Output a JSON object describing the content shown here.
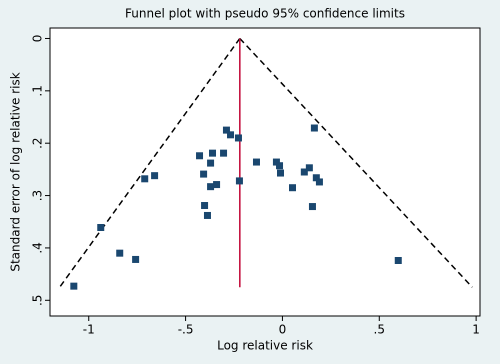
{
  "chart_data": {
    "type": "scatter",
    "title": "Funnel plot with pseudo 95% confidence limits",
    "xlabel": "Log relative risk",
    "ylabel": "Standard error of log relative risk",
    "xlim": [
      -1.2,
      1.02
    ],
    "ylim": [
      -0.02,
      0.53
    ],
    "y_reversed": true,
    "xticks": [
      {
        "value": -1,
        "label": "-1"
      },
      {
        "value": -0.5,
        "label": "-.5"
      },
      0,
      {
        "value": 0.5,
        "label": ".5"
      },
      1
    ],
    "yticks": [
      0,
      {
        "value": 0.1,
        "label": ".1"
      },
      {
        "value": 0.2,
        "label": ".2"
      },
      {
        "value": 0.3,
        "label": ".3"
      },
      {
        "value": 0.4,
        "label": ".4"
      },
      {
        "value": 0.5,
        "label": ".5"
      }
    ],
    "series": [
      {
        "color": "#1a476f",
        "x": [
          -1.077,
          -0.938,
          -0.84,
          -0.758,
          -0.711,
          -0.66,
          -0.428,
          -0.407,
          -0.402,
          -0.387,
          -0.371,
          -0.371,
          -0.361,
          -0.34,
          -0.304,
          -0.289,
          -0.268,
          -0.227,
          -0.222,
          -0.134,
          -0.031,
          -0.015,
          -0.01,
          0.052,
          0.113,
          0.139,
          0.155,
          0.165,
          0.175,
          0.191,
          0.598
        ],
        "values": [
          0.473,
          0.361,
          0.41,
          0.422,
          0.268,
          0.262,
          0.224,
          0.259,
          0.319,
          0.338,
          0.238,
          0.283,
          0.219,
          0.279,
          0.219,
          0.175,
          0.184,
          0.19,
          0.272,
          0.236,
          0.236,
          0.243,
          0.257,
          0.285,
          0.255,
          0.247,
          0.321,
          0.171,
          0.266,
          0.274,
          0.424
        ]
      }
    ],
    "reference_line": {
      "color": "#c10534",
      "x": [
        -0.22,
        -0.22
      ],
      "values": [
        0,
        0.475
      ]
    },
    "limit_lines": [
      {
        "color": "#000000",
        "x": [
          -0.22,
          -1.15
        ],
        "values": [
          0,
          0.475
        ]
      },
      {
        "color": "#000000",
        "x": [
          -0.22,
          0.98
        ],
        "values": [
          0,
          0.475
        ]
      }
    ]
  }
}
